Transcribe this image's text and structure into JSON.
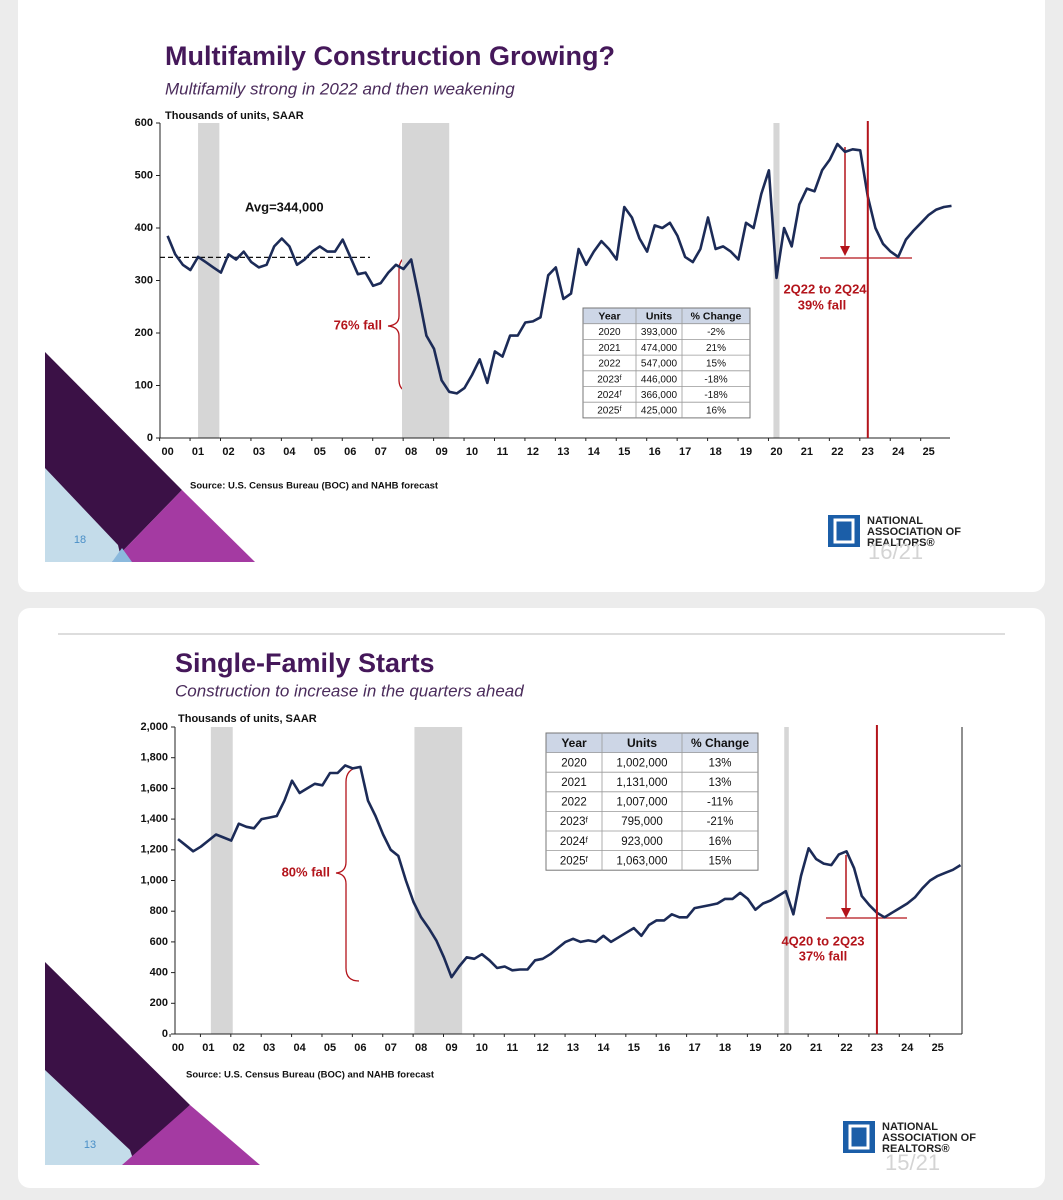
{
  "chart_data": [
    {
      "type": "line",
      "title": "Multifamily Construction Growing?",
      "subtitle": "Multifamily strong in 2022 and then weakening",
      "y_label": "Thousands of units, SAAR",
      "source": "Source: U.S. Census Bureau (BOC) and NAHB forecast",
      "color": "#1c2b57",
      "xlim": [
        -0.25,
        25.7
      ],
      "xticks": [
        {
          "value": 0,
          "label": "00"
        },
        {
          "value": 1,
          "label": "01"
        },
        {
          "value": 2,
          "label": "02"
        },
        {
          "value": 3,
          "label": "03"
        },
        {
          "value": 4,
          "label": "04"
        },
        {
          "value": 5,
          "label": "05"
        },
        {
          "value": 6,
          "label": "06"
        },
        {
          "value": 7,
          "label": "07"
        },
        {
          "value": 8,
          "label": "08"
        },
        {
          "value": 9,
          "label": "09"
        },
        10,
        11,
        12,
        13,
        14,
        15,
        16,
        17,
        18,
        19,
        20,
        21,
        22,
        23,
        24,
        25
      ],
      "ylim": [
        0,
        600
      ],
      "yticks": [
        0,
        100,
        200,
        300,
        400,
        500,
        600
      ],
      "x": [
        0,
        0.25,
        0.5,
        0.75,
        1,
        1.25,
        1.5,
        1.75,
        2,
        2.25,
        2.5,
        2.75,
        3,
        3.25,
        3.5,
        3.75,
        4,
        4.25,
        4.5,
        4.75,
        5,
        5.25,
        5.5,
        5.75,
        6,
        6.25,
        6.5,
        6.75,
        7,
        7.25,
        7.5,
        7.75,
        8,
        8.25,
        8.5,
        8.75,
        9,
        9.25,
        9.5,
        9.75,
        10,
        10.25,
        10.5,
        10.75,
        11,
        11.25,
        11.5,
        11.75,
        12,
        12.25,
        12.5,
        12.75,
        13,
        13.25,
        13.5,
        13.75,
        14,
        14.25,
        14.5,
        14.75,
        15,
        15.25,
        15.5,
        15.75,
        16,
        16.25,
        16.5,
        16.75,
        17,
        17.25,
        17.5,
        17.75,
        18,
        18.25,
        18.5,
        18.75,
        19,
        19.25,
        19.5,
        19.75,
        20,
        20.25,
        20.5,
        20.75,
        21,
        21.25,
        21.5,
        21.75,
        22,
        22.25,
        22.5,
        22.75,
        23,
        23.25,
        23.5,
        23.75,
        24,
        24.25,
        24.5,
        24.75,
        25,
        25.25,
        25.5,
        25.75
      ],
      "values": [
        385,
        350,
        330,
        320,
        345,
        335,
        325,
        315,
        350,
        340,
        355,
        335,
        325,
        330,
        365,
        380,
        365,
        330,
        340,
        355,
        365,
        355,
        355,
        378,
        345,
        312,
        315,
        290,
        295,
        315,
        330,
        322,
        340,
        270,
        195,
        170,
        110,
        88,
        85,
        95,
        120,
        150,
        105,
        165,
        155,
        195,
        195,
        220,
        222,
        230,
        310,
        325,
        265,
        275,
        360,
        330,
        355,
        375,
        360,
        340,
        440,
        420,
        380,
        355,
        405,
        400,
        410,
        385,
        345,
        335,
        360,
        420,
        360,
        365,
        355,
        340,
        410,
        400,
        465,
        510,
        305,
        400,
        365,
        445,
        475,
        470,
        510,
        530,
        560,
        545,
        550,
        548,
        460,
        400,
        370,
        355,
        345,
        378,
        395,
        410,
        425,
        435,
        440,
        442
      ],
      "shaded_ranges": [
        [
          1.0,
          1.7
        ],
        [
          7.7,
          9.25
        ],
        [
          19.9,
          20.1
        ]
      ],
      "shade_color": "#d6d6d6",
      "vline_x": 23,
      "vline_color": "#b3141b",
      "avg_value": 344,
      "avg_label": "Avg=344,000",
      "annotations": [
        "76% fall",
        "2Q22 to 2Q24",
        "39% fall"
      ],
      "table": {
        "columns": [
          "Year",
          "Units",
          "% Change"
        ],
        "rows": [
          [
            "2020",
            "393,000",
            "-2%"
          ],
          [
            "2021",
            "474,000",
            "21%"
          ],
          [
            "2022",
            "547,000",
            "15%"
          ],
          [
            "2023ᶠ",
            "446,000",
            "-18%"
          ],
          [
            "2024ᶠ",
            "366,000",
            "-18%"
          ],
          [
            "2025ᶠ",
            "425,000",
            "16%"
          ]
        ]
      },
      "slide_number": "18",
      "logo": [
        "NATIONAL",
        "ASSOCIATION OF",
        "REALTORS®"
      ],
      "page_counter": "16/21"
    },
    {
      "type": "line",
      "title": "Single-Family Starts",
      "subtitle": "Construction to increase in the quarters ahead",
      "y_label": "Thousands of units, SAAR",
      "source": "Source:  U.S. Census Bureau (BOC) and NAHB forecast",
      "color": "#1c2b57",
      "xlim": [
        -0.1,
        25.8
      ],
      "xticks": [
        {
          "value": 0,
          "label": "00"
        },
        {
          "value": 1,
          "label": "01"
        },
        {
          "value": 2,
          "label": "02"
        },
        {
          "value": 3,
          "label": "03"
        },
        {
          "value": 4,
          "label": "04"
        },
        {
          "value": 5,
          "label": "05"
        },
        {
          "value": 6,
          "label": "06"
        },
        {
          "value": 7,
          "label": "07"
        },
        {
          "value": 8,
          "label": "08"
        },
        {
          "value": 9,
          "label": "09"
        },
        10,
        11,
        12,
        13,
        14,
        15,
        16,
        17,
        18,
        19,
        20,
        21,
        22,
        23,
        24,
        25
      ],
      "ylim": [
        0,
        2000
      ],
      "yticks": [
        0,
        200,
        400,
        600,
        800,
        {
          "value": 1000,
          "label": "1,000"
        },
        {
          "value": 1200,
          "label": "1,200"
        },
        {
          "value": 1400,
          "label": "1,400"
        },
        {
          "value": 1600,
          "label": "1,600"
        },
        {
          "value": 1800,
          "label": "1,800"
        },
        {
          "value": 2000,
          "label": "2,000"
        }
      ],
      "x": [
        0,
        0.25,
        0.5,
        0.75,
        1,
        1.25,
        1.5,
        1.75,
        2,
        2.25,
        2.5,
        2.75,
        3,
        3.25,
        3.5,
        3.75,
        4,
        4.25,
        4.5,
        4.75,
        5,
        5.25,
        5.5,
        5.75,
        6,
        6.25,
        6.5,
        6.75,
        7,
        7.25,
        7.5,
        7.75,
        8,
        8.25,
        8.5,
        8.75,
        9,
        9.25,
        9.5,
        9.75,
        10,
        10.25,
        10.5,
        10.75,
        11,
        11.25,
        11.5,
        11.75,
        12,
        12.25,
        12.5,
        12.75,
        13,
        13.25,
        13.5,
        13.75,
        14,
        14.25,
        14.5,
        14.75,
        15,
        15.25,
        15.5,
        15.75,
        16,
        16.25,
        16.5,
        16.75,
        17,
        17.25,
        17.5,
        17.75,
        18,
        18.25,
        18.5,
        18.75,
        19,
        19.25,
        19.5,
        19.75,
        20,
        20.25,
        20.5,
        20.75,
        21,
        21.25,
        21.5,
        21.75,
        22,
        22.25,
        22.5,
        22.75,
        23,
        23.25,
        23.5,
        23.75,
        24,
        24.25,
        24.5,
        24.75,
        25,
        25.25,
        25.5,
        25.75
      ],
      "values": [
        1270,
        1230,
        1190,
        1220,
        1260,
        1300,
        1280,
        1260,
        1370,
        1350,
        1340,
        1400,
        1410,
        1420,
        1520,
        1650,
        1570,
        1600,
        1630,
        1620,
        1700,
        1700,
        1750,
        1730,
        1740,
        1520,
        1420,
        1300,
        1200,
        1160,
        1000,
        860,
        760,
        690,
        610,
        500,
        370,
        440,
        500,
        490,
        520,
        480,
        430,
        440,
        415,
        420,
        420,
        480,
        490,
        520,
        560,
        600,
        620,
        600,
        610,
        600,
        640,
        600,
        630,
        660,
        690,
        640,
        710,
        740,
        740,
        780,
        760,
        760,
        820,
        830,
        840,
        850,
        880,
        880,
        920,
        880,
        810,
        850,
        870,
        900,
        930,
        780,
        1030,
        1210,
        1140,
        1110,
        1100,
        1170,
        1190,
        1080,
        900,
        840,
        790,
        760,
        790,
        820,
        850,
        890,
        950,
        1000,
        1030,
        1050,
        1070,
        1100
      ],
      "shaded_ranges": [
        [
          1.08,
          1.8
        ],
        [
          7.78,
          9.35
        ],
        [
          19.95,
          20.1
        ]
      ],
      "shade_color": "#d6d6d6",
      "vline_x": 23,
      "vline_color": "#b3141b",
      "annotations": [
        "80% fall",
        "4Q20 to 2Q23",
        "37% fall"
      ],
      "table": {
        "columns": [
          "Year",
          "Units",
          "% Change"
        ],
        "rows": [
          [
            "2020",
            "1,002,000",
            "13%"
          ],
          [
            "2021",
            "1,131,000",
            "13%"
          ],
          [
            "2022",
            "1,007,000",
            "-11%"
          ],
          [
            "2023ᶠ",
            "795,000",
            "-21%"
          ],
          [
            "2024ᶠ",
            "923,000",
            "16%"
          ],
          [
            "2025ᶠ",
            "1,063,000",
            "15%"
          ]
        ]
      },
      "slide_number": "13",
      "logo": [
        "NATIONAL",
        "ASSOCIATION OF",
        "REALTORS®"
      ],
      "page_counter": "15/21"
    }
  ]
}
